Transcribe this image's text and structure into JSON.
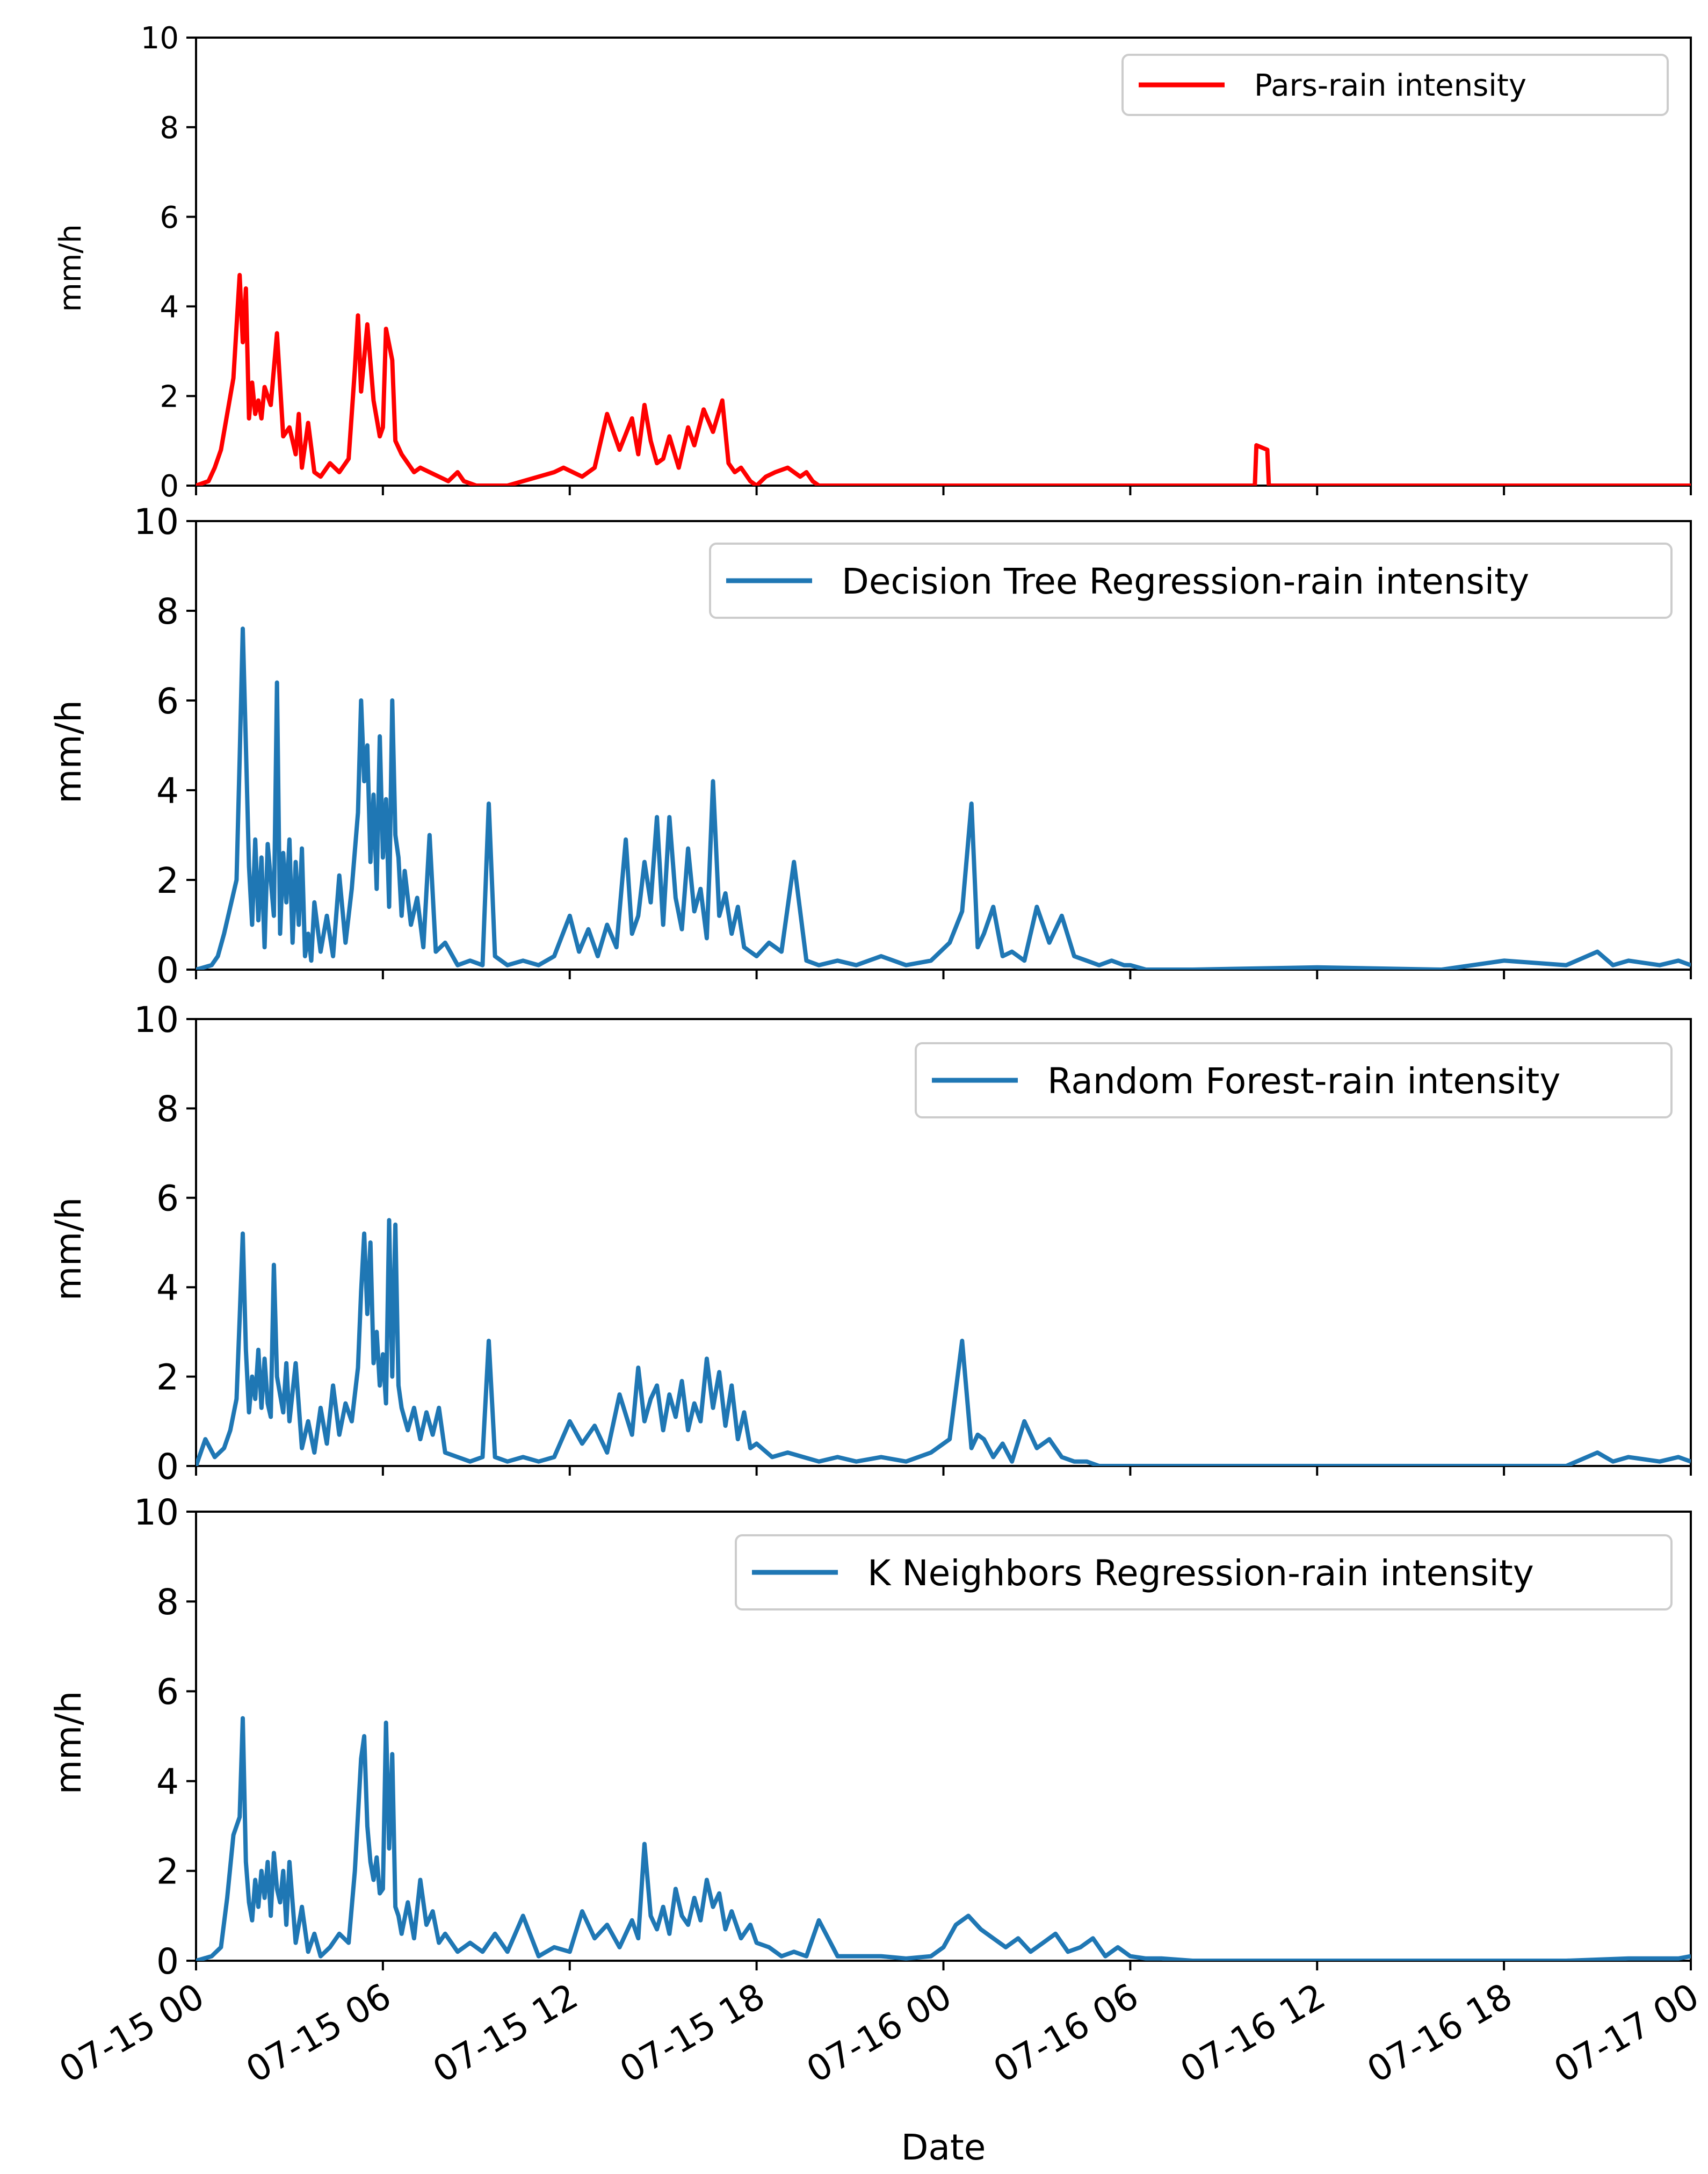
{
  "chart_data": [
    {
      "type": "line",
      "ylabel": "mm/h",
      "ylim": [
        0,
        10
      ],
      "yticks": [
        0,
        2,
        4,
        6,
        8,
        10
      ],
      "xlim": [
        "07-15 00",
        "07-17 00"
      ],
      "legend_location": "top-right",
      "series": [
        {
          "name": "Pars-rain intensity",
          "color": "#ff0000",
          "x_hours": [
            0,
            0.4,
            0.6,
            0.8,
            1.0,
            1.2,
            1.4,
            1.5,
            1.6,
            1.7,
            1.8,
            1.9,
            2.0,
            2.1,
            2.2,
            2.4,
            2.6,
            2.8,
            3.0,
            3.2,
            3.3,
            3.4,
            3.6,
            3.8,
            4.0,
            4.3,
            4.6,
            4.9,
            5.1,
            5.2,
            5.3,
            5.5,
            5.7,
            5.9,
            6.0,
            6.1,
            6.3,
            6.4,
            6.6,
            6.8,
            7.0,
            7.2,
            7.5,
            7.8,
            8.1,
            8.4,
            8.6,
            9.0,
            10.0,
            11.5,
            11.8,
            12.1,
            12.4,
            12.8,
            13.2,
            13.6,
            14.0,
            14.2,
            14.4,
            14.6,
            14.8,
            15.0,
            15.2,
            15.5,
            15.8,
            16.0,
            16.3,
            16.6,
            16.9,
            17.1,
            17.3,
            17.5,
            17.8,
            18.0,
            18.3,
            18.6,
            19.0,
            19.4,
            19.6,
            19.8,
            20.0,
            20.5,
            34.0,
            34.05,
            34.4,
            34.45,
            48.0
          ],
          "y": [
            0,
            0.1,
            0.4,
            0.8,
            1.6,
            2.4,
            4.7,
            3.2,
            4.4,
            1.5,
            2.3,
            1.6,
            1.9,
            1.5,
            2.2,
            1.8,
            3.4,
            1.1,
            1.3,
            0.7,
            1.6,
            0.4,
            1.4,
            0.3,
            0.2,
            0.5,
            0.3,
            0.6,
            2.6,
            3.8,
            2.1,
            3.6,
            1.9,
            1.1,
            1.3,
            3.5,
            2.8,
            1.0,
            0.7,
            0.5,
            0.3,
            0.4,
            0.3,
            0.2,
            0.1,
            0.3,
            0.1,
            0,
            0,
            0.3,
            0.4,
            0.3,
            0.2,
            0.4,
            1.6,
            0.8,
            1.5,
            0.7,
            1.8,
            1.0,
            0.5,
            0.6,
            1.1,
            0.4,
            1.3,
            0.9,
            1.7,
            1.2,
            1.9,
            0.5,
            0.3,
            0.4,
            0.1,
            0,
            0.2,
            0.3,
            0.4,
            0.2,
            0.3,
            0.1,
            0,
            0,
            0,
            0.9,
            0.8,
            0,
            0
          ]
        }
      ]
    },
    {
      "type": "line",
      "ylabel": "mm/h",
      "ylim": [
        0,
        10
      ],
      "yticks": [
        0,
        2,
        4,
        6,
        8,
        10
      ],
      "xlim": [
        "07-15 00",
        "07-17 00"
      ],
      "legend_location": "top-right",
      "series": [
        {
          "name": "Decision Tree Regression-rain intensity",
          "color": "#1f77b4",
          "x_hours": [
            0,
            0.5,
            0.7,
            0.9,
            1.1,
            1.3,
            1.4,
            1.5,
            1.6,
            1.7,
            1.8,
            1.9,
            2.0,
            2.1,
            2.2,
            2.3,
            2.5,
            2.6,
            2.7,
            2.8,
            2.9,
            3.0,
            3.1,
            3.2,
            3.3,
            3.4,
            3.5,
            3.6,
            3.7,
            3.8,
            4.0,
            4.2,
            4.4,
            4.6,
            4.8,
            5.0,
            5.2,
            5.3,
            5.4,
            5.5,
            5.6,
            5.7,
            5.8,
            5.9,
            6.0,
            6.1,
            6.2,
            6.3,
            6.4,
            6.5,
            6.6,
            6.7,
            6.9,
            7.1,
            7.3,
            7.5,
            7.7,
            8.0,
            8.4,
            8.8,
            9.2,
            9.4,
            9.6,
            10.0,
            10.5,
            11.0,
            11.5,
            12.0,
            12.3,
            12.6,
            12.9,
            13.2,
            13.5,
            13.8,
            14.0,
            14.2,
            14.4,
            14.6,
            14.8,
            15.0,
            15.2,
            15.4,
            15.6,
            15.8,
            16.0,
            16.2,
            16.4,
            16.6,
            16.8,
            17.0,
            17.2,
            17.4,
            17.6,
            18.0,
            18.4,
            18.8,
            19.2,
            19.6,
            20.0,
            20.6,
            21.2,
            22.0,
            22.8,
            23.6,
            24.2,
            24.6,
            24.9,
            25.1,
            25.3,
            25.6,
            25.9,
            26.2,
            26.6,
            27.0,
            27.4,
            27.8,
            28.2,
            28.6,
            29.0,
            29.4,
            29.8,
            30.0,
            30.5,
            31.0,
            31.5,
            32.0,
            36.0,
            40.0,
            42.0,
            44.0,
            45.0,
            45.5,
            46.0,
            47.0,
            47.6,
            48.0
          ],
          "y": [
            0,
            0.1,
            0.3,
            0.8,
            1.4,
            2.0,
            4.7,
            7.6,
            5.0,
            2.3,
            1.0,
            2.9,
            1.1,
            2.5,
            0.5,
            2.8,
            1.2,
            6.4,
            0.8,
            2.6,
            1.5,
            2.9,
            0.6,
            2.4,
            1.0,
            2.7,
            0.3,
            0.8,
            0.2,
            1.5,
            0.4,
            1.2,
            0.3,
            2.1,
            0.6,
            1.8,
            3.5,
            6.0,
            4.2,
            5.0,
            2.4,
            3.9,
            1.8,
            5.2,
            2.5,
            3.8,
            1.4,
            6.0,
            3.0,
            2.5,
            1.2,
            2.2,
            1.0,
            1.6,
            0.5,
            3.0,
            0.4,
            0.6,
            0.1,
            0.2,
            0.1,
            3.7,
            0.3,
            0.1,
            0.2,
            0.1,
            0.3,
            1.2,
            0.4,
            0.9,
            0.3,
            1.0,
            0.5,
            2.9,
            0.8,
            1.2,
            2.4,
            1.5,
            3.4,
            1.0,
            3.4,
            1.6,
            0.9,
            2.7,
            1.3,
            1.8,
            0.7,
            4.2,
            1.2,
            1.7,
            0.8,
            1.4,
            0.5,
            0.3,
            0.6,
            0.4,
            2.4,
            0.2,
            0.1,
            0.2,
            0.1,
            0.3,
            0.1,
            0.2,
            0.6,
            1.3,
            3.7,
            0.5,
            0.8,
            1.4,
            0.3,
            0.4,
            0.2,
            1.4,
            0.6,
            1.2,
            0.3,
            0.2,
            0.1,
            0.2,
            0.1,
            0.1,
            0,
            0,
            0,
            0,
            0.05,
            0,
            0.2,
            0.1,
            0.4,
            0.1,
            0.2,
            0.1,
            0.2,
            0.1
          ]
        }
      ]
    },
    {
      "type": "line",
      "ylabel": "mm/h",
      "ylim": [
        0,
        10
      ],
      "yticks": [
        0,
        2,
        4,
        6,
        8,
        10
      ],
      "xlim": [
        "07-15 00",
        "07-17 00"
      ],
      "legend_location": "top-right",
      "series": [
        {
          "name": "Random Forest-rain intensity",
          "color": "#1f77b4",
          "x_hours": [
            0,
            0.3,
            0.6,
            0.9,
            1.1,
            1.3,
            1.4,
            1.5,
            1.6,
            1.7,
            1.8,
            1.9,
            2.0,
            2.1,
            2.2,
            2.3,
            2.4,
            2.5,
            2.6,
            2.7,
            2.8,
            2.9,
            3.0,
            3.2,
            3.4,
            3.6,
            3.8,
            4.0,
            4.2,
            4.4,
            4.6,
            4.8,
            5.0,
            5.2,
            5.3,
            5.4,
            5.5,
            5.6,
            5.7,
            5.8,
            5.9,
            6.0,
            6.1,
            6.2,
            6.3,
            6.4,
            6.5,
            6.6,
            6.8,
            7.0,
            7.2,
            7.4,
            7.6,
            7.8,
            8.0,
            8.4,
            8.8,
            9.2,
            9.4,
            9.6,
            10.0,
            10.5,
            11.0,
            11.5,
            12.0,
            12.4,
            12.8,
            13.2,
            13.6,
            14.0,
            14.2,
            14.4,
            14.6,
            14.8,
            15.0,
            15.2,
            15.4,
            15.6,
            15.8,
            16.0,
            16.2,
            16.4,
            16.6,
            16.8,
            17.0,
            17.2,
            17.4,
            17.6,
            17.8,
            18.0,
            18.5,
            19.0,
            19.5,
            20.0,
            20.6,
            21.2,
            22.0,
            22.8,
            23.6,
            24.2,
            24.6,
            24.9,
            25.1,
            25.3,
            25.6,
            25.9,
            26.2,
            26.6,
            27.0,
            27.4,
            27.8,
            28.2,
            28.6,
            29.0,
            29.4,
            29.8,
            30.0,
            30.5,
            31.0,
            32.0,
            36.0,
            40.0,
            42.0,
            44.0,
            45.0,
            45.5,
            46.0,
            47.0,
            47.6,
            48.0
          ],
          "y": [
            0,
            0.6,
            0.2,
            0.4,
            0.8,
            1.5,
            3.3,
            5.2,
            2.6,
            1.2,
            2.0,
            1.5,
            2.6,
            1.3,
            2.4,
            1.4,
            1.1,
            4.5,
            2.0,
            1.6,
            1.2,
            2.3,
            1.0,
            2.3,
            0.4,
            1.0,
            0.3,
            1.3,
            0.5,
            1.8,
            0.7,
            1.4,
            1.0,
            2.2,
            3.9,
            5.2,
            3.4,
            5.0,
            2.3,
            3.0,
            1.8,
            2.5,
            1.4,
            5.5,
            2.0,
            5.4,
            1.8,
            1.3,
            0.8,
            1.3,
            0.6,
            1.2,
            0.7,
            1.3,
            0.3,
            0.2,
            0.1,
            0.2,
            2.8,
            0.2,
            0.1,
            0.2,
            0.1,
            0.2,
            1.0,
            0.5,
            0.9,
            0.3,
            1.6,
            0.7,
            2.2,
            1.0,
            1.5,
            1.8,
            0.8,
            1.6,
            1.1,
            1.9,
            0.8,
            1.4,
            1.0,
            2.4,
            1.3,
            2.1,
            0.9,
            1.8,
            0.6,
            1.2,
            0.4,
            0.5,
            0.2,
            0.3,
            0.2,
            0.1,
            0.2,
            0.1,
            0.2,
            0.1,
            0.3,
            0.6,
            2.8,
            0.4,
            0.7,
            0.6,
            0.2,
            0.5,
            0.1,
            1.0,
            0.4,
            0.6,
            0.2,
            0.1,
            0.1,
            0,
            0,
            0,
            0,
            0,
            0,
            0,
            0,
            0,
            0,
            0,
            0.3,
            0.1,
            0.2,
            0.1,
            0.2,
            0.1
          ]
        }
      ]
    },
    {
      "type": "line",
      "ylabel": "mm/h",
      "ylim": [
        0,
        10
      ],
      "yticks": [
        0,
        2,
        4,
        6,
        8,
        10
      ],
      "xlim": [
        "07-15 00",
        "07-17 00"
      ],
      "xlabel": "Date",
      "xtick_labels": [
        "07-15 00",
        "07-15 06",
        "07-15 12",
        "07-15 18",
        "07-16 00",
        "07-16 06",
        "07-16 12",
        "07-16 18",
        "07-17 00"
      ],
      "legend_location": "top-right",
      "series": [
        {
          "name": "K Neighbors Regression-rain intensity",
          "color": "#1f77b4",
          "x_hours": [
            0,
            0.5,
            0.8,
            1.0,
            1.2,
            1.4,
            1.5,
            1.6,
            1.7,
            1.8,
            1.9,
            2.0,
            2.1,
            2.2,
            2.3,
            2.4,
            2.5,
            2.6,
            2.7,
            2.8,
            2.9,
            3.0,
            3.2,
            3.4,
            3.6,
            3.8,
            4.0,
            4.3,
            4.6,
            4.9,
            5.1,
            5.3,
            5.4,
            5.5,
            5.6,
            5.7,
            5.8,
            5.9,
            6.0,
            6.1,
            6.2,
            6.3,
            6.4,
            6.5,
            6.6,
            6.8,
            7.0,
            7.2,
            7.4,
            7.6,
            7.8,
            8.0,
            8.4,
            8.8,
            9.2,
            9.6,
            10.0,
            10.5,
            11.0,
            11.5,
            12.0,
            12.4,
            12.8,
            13.2,
            13.6,
            14.0,
            14.2,
            14.4,
            14.6,
            14.8,
            15.0,
            15.2,
            15.4,
            15.6,
            15.8,
            16.0,
            16.2,
            16.4,
            16.6,
            16.8,
            17.0,
            17.2,
            17.5,
            17.8,
            18.0,
            18.4,
            18.8,
            19.2,
            19.6,
            20.0,
            20.6,
            21.2,
            22.0,
            22.8,
            23.6,
            24.0,
            24.4,
            24.8,
            25.2,
            25.6,
            26.0,
            26.4,
            26.8,
            27.2,
            27.6,
            28.0,
            28.4,
            28.8,
            29.2,
            29.6,
            30.0,
            30.5,
            31.0,
            32.0,
            36.0,
            40.0,
            42.0,
            44.0,
            46.0,
            47.6,
            48.0
          ],
          "y": [
            0,
            0.1,
            0.3,
            1.4,
            2.8,
            3.2,
            5.4,
            2.2,
            1.3,
            0.9,
            1.8,
            1.2,
            2.0,
            1.4,
            2.2,
            1.0,
            2.4,
            1.6,
            1.3,
            2.0,
            0.8,
            2.2,
            0.4,
            1.2,
            0.2,
            0.6,
            0.1,
            0.3,
            0.6,
            0.4,
            2.0,
            4.5,
            5.0,
            3.0,
            2.2,
            1.8,
            2.3,
            1.5,
            1.6,
            5.3,
            2.5,
            4.6,
            1.2,
            1.0,
            0.6,
            1.3,
            0.5,
            1.8,
            0.8,
            1.1,
            0.4,
            0.6,
            0.2,
            0.4,
            0.2,
            0.6,
            0.2,
            1.0,
            0.1,
            0.3,
            0.2,
            1.1,
            0.5,
            0.8,
            0.3,
            0.9,
            0.5,
            2.6,
            1.0,
            0.7,
            1.2,
            0.6,
            1.6,
            1.0,
            0.8,
            1.4,
            0.9,
            1.8,
            1.2,
            1.5,
            0.7,
            1.1,
            0.5,
            0.8,
            0.4,
            0.3,
            0.1,
            0.2,
            0.1,
            0.9,
            0.1,
            0.1,
            0.1,
            0.05,
            0.1,
            0.3,
            0.8,
            1.0,
            0.7,
            0.5,
            0.3,
            0.5,
            0.2,
            0.4,
            0.6,
            0.2,
            0.3,
            0.5,
            0.1,
            0.3,
            0.1,
            0.05,
            0.05,
            0,
            0,
            0,
            0,
            0,
            0.05,
            0.05,
            0.1
          ]
        }
      ]
    }
  ]
}
